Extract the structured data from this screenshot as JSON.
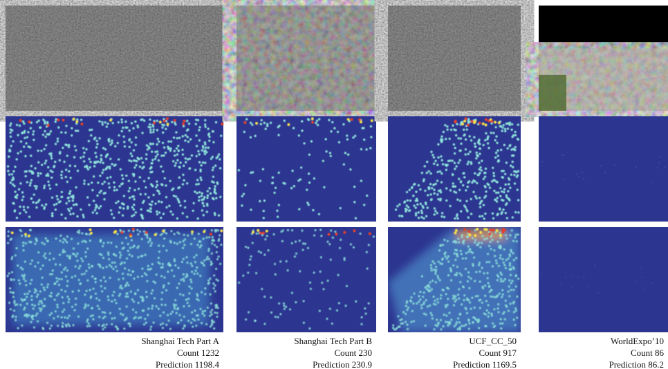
{
  "columns": [
    {
      "dataset": "Shanghai Tech Part A",
      "count": "Count 1232",
      "prediction": "Prediction 1198.4"
    },
    {
      "dataset": "Shanghai Tech Part B",
      "count": "Count 230",
      "prediction": "Prediction 230.9"
    },
    {
      "dataset": "UCF_CC_50",
      "count": "Count 917",
      "prediction": "Prediction 1169.5"
    },
    {
      "dataset": "WorldExpo’10",
      "count": "Count 86",
      "prediction": "Prediction 86.2"
    }
  ]
}
